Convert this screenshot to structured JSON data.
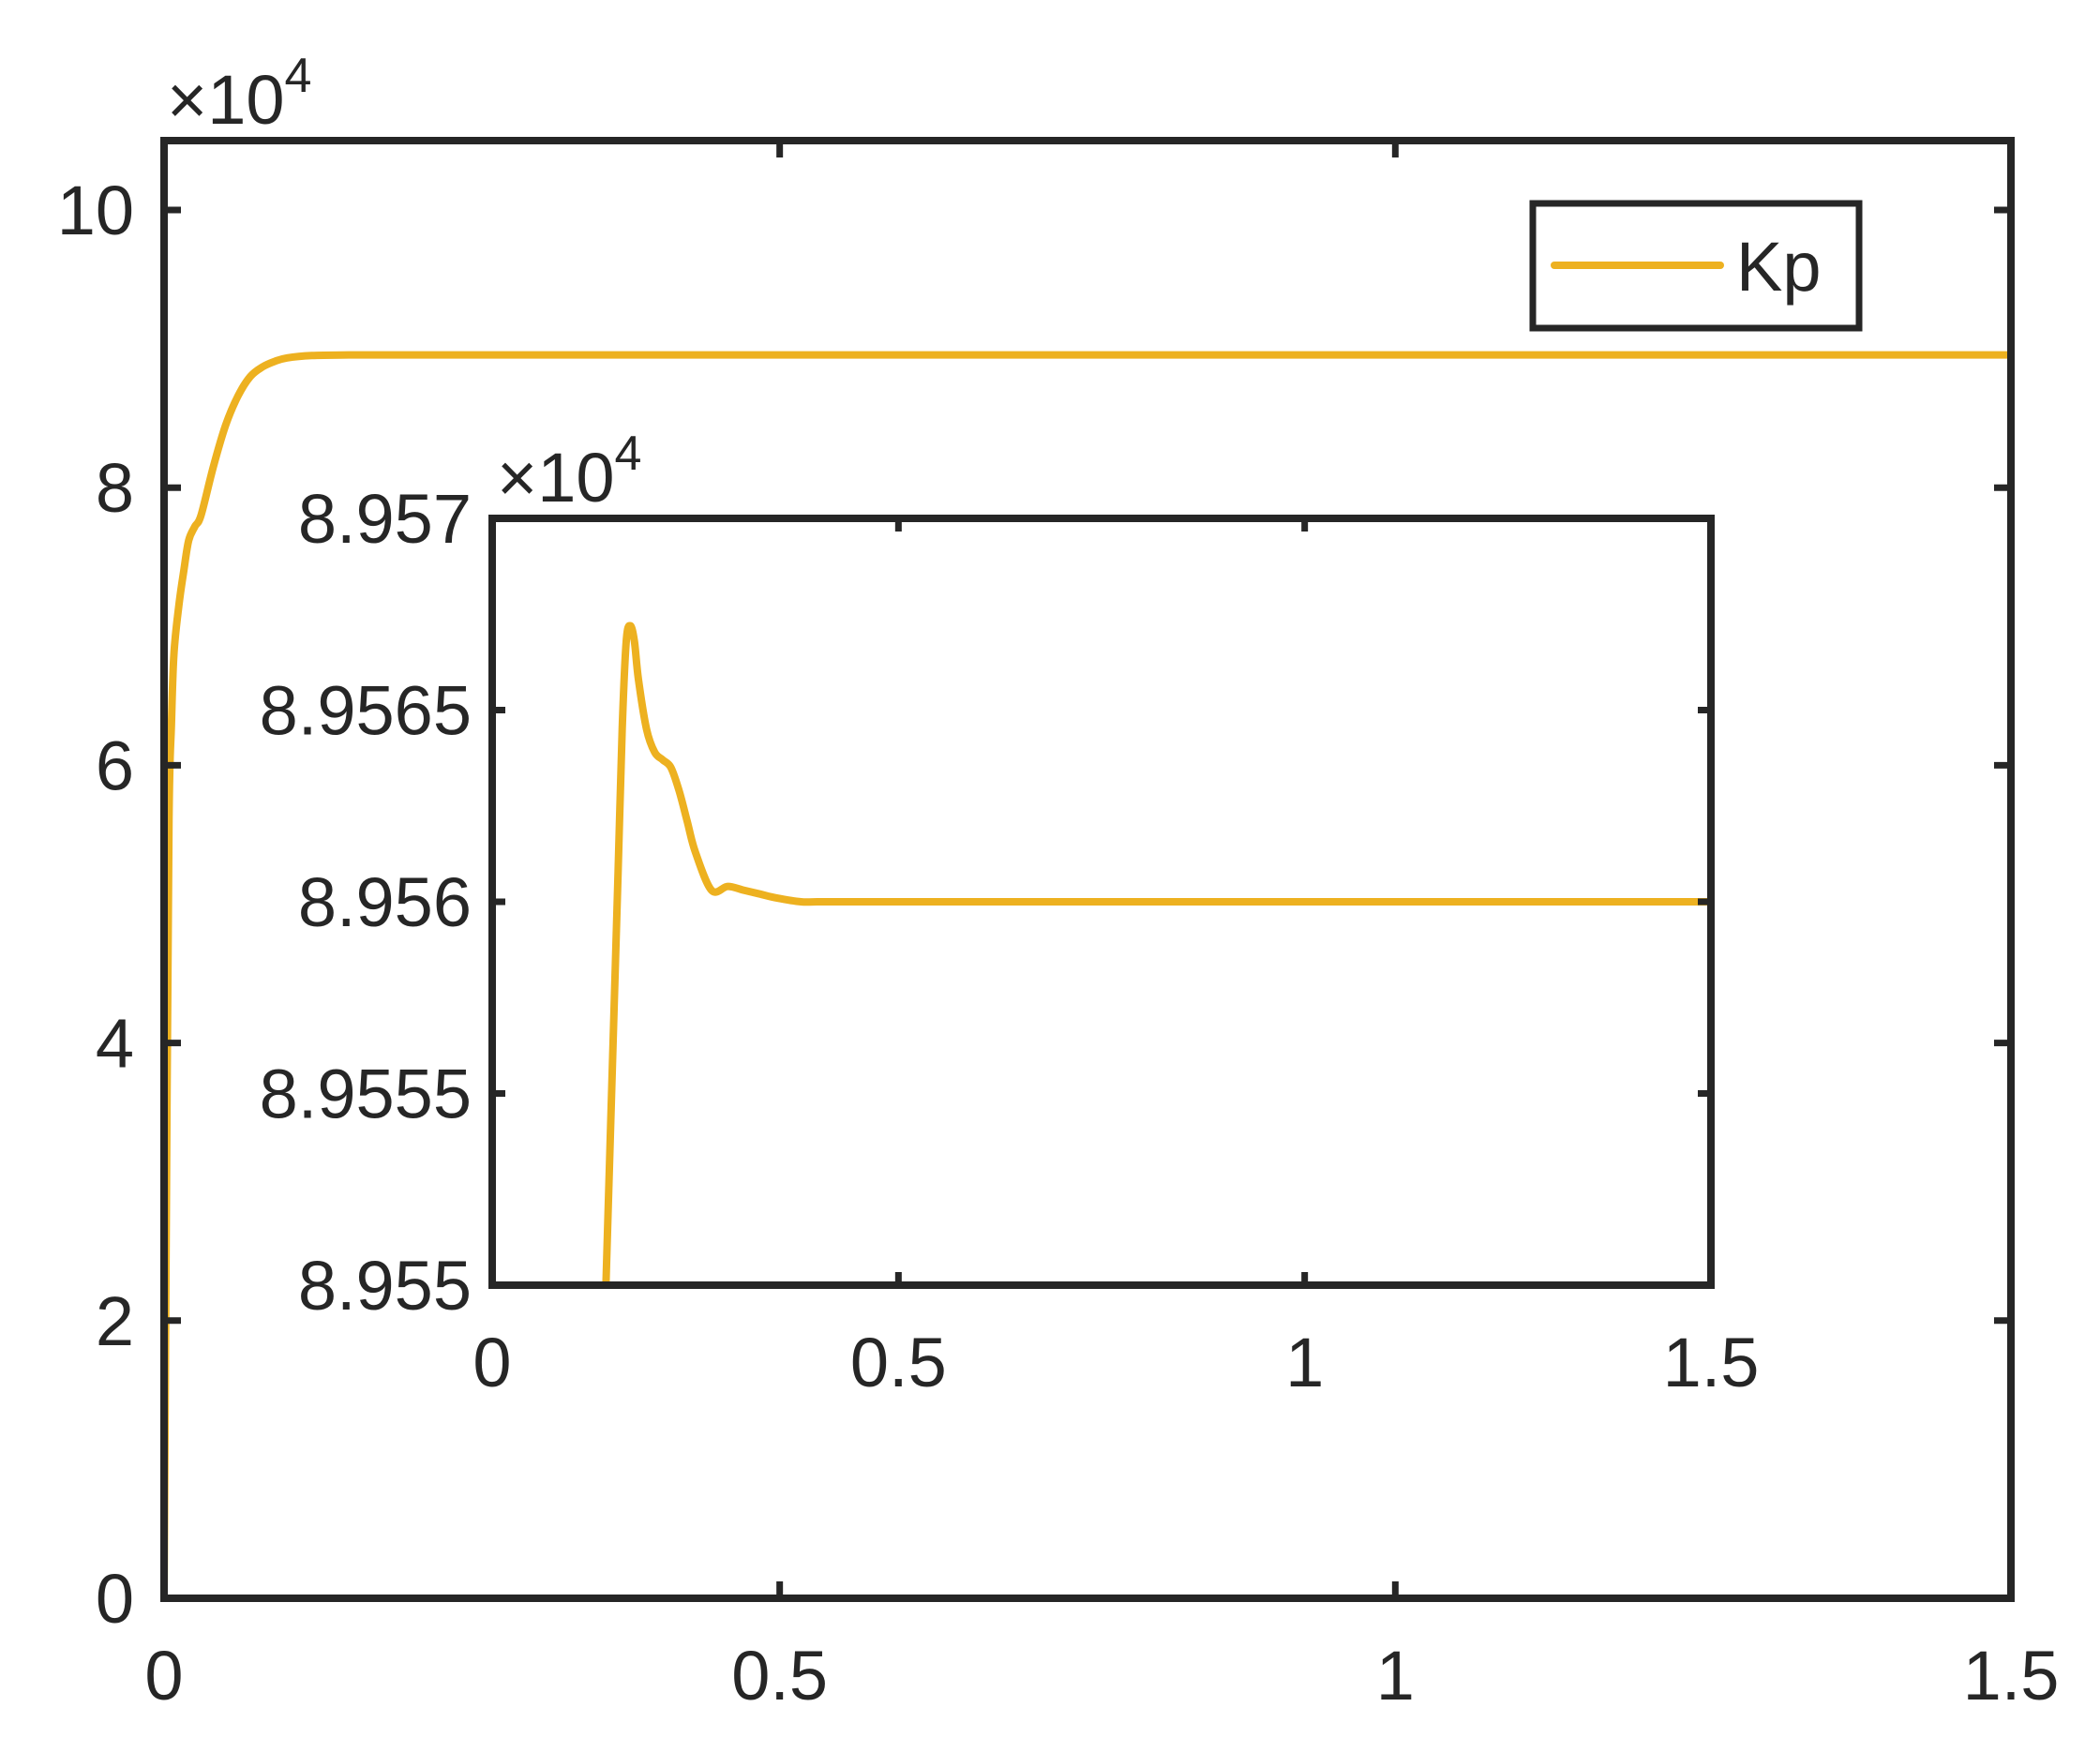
{
  "colors": {
    "series": "#EDB120",
    "axes": "#262626",
    "background": "#ffffff"
  },
  "chart_data": [
    {
      "type": "line",
      "role": "main",
      "xlim": [
        0,
        1.5
      ],
      "ylim": [
        0,
        10.5
      ],
      "y_multiplier": {
        "base": "×10",
        "exponent": "4"
      },
      "x_ticks": [
        {
          "value": 0,
          "label": "0"
        },
        {
          "value": 0.5,
          "label": "0.5"
        },
        {
          "value": 1,
          "label": "1"
        },
        {
          "value": 1.5,
          "label": "1.5"
        }
      ],
      "y_ticks": [
        {
          "value": 0,
          "label": "0"
        },
        {
          "value": 2,
          "label": "2"
        },
        {
          "value": 4,
          "label": "4"
        },
        {
          "value": 6,
          "label": "6"
        },
        {
          "value": 8,
          "label": "8"
        },
        {
          "value": 10,
          "label": "10"
        }
      ],
      "grid": false,
      "legend": {
        "position": "top-right",
        "entries": [
          "Kp"
        ]
      },
      "series": [
        {
          "name": "Kp",
          "x": [
            0,
            0.002,
            0.004,
            0.006,
            0.008,
            0.012,
            0.016,
            0.02,
            0.025,
            0.03,
            0.04,
            0.05,
            0.06,
            0.07,
            0.08,
            0.09,
            0.1,
            0.12,
            0.15,
            0.2,
            0.3,
            0.5,
            0.8,
            1.0,
            1.2,
            1.5
          ],
          "y": [
            0,
            3.0,
            5.6,
            6.3,
            6.8,
            7.15,
            7.4,
            7.62,
            7.72,
            7.8,
            8.15,
            8.45,
            8.66,
            8.8,
            8.87,
            8.91,
            8.935,
            8.952,
            8.956,
            8.956,
            8.956,
            8.956,
            8.956,
            8.956,
            8.956,
            8.956
          ]
        }
      ]
    },
    {
      "type": "line",
      "role": "inset",
      "xlim": [
        0,
        1.5
      ],
      "ylim": [
        8.955,
        8.957
      ],
      "y_multiplier": {
        "base": "×10",
        "exponent": "4"
      },
      "x_ticks": [
        {
          "value": 0,
          "label": "0"
        },
        {
          "value": 0.5,
          "label": "0.5"
        },
        {
          "value": 1,
          "label": "1"
        },
        {
          "value": 1.5,
          "label": "1.5"
        }
      ],
      "y_ticks": [
        {
          "value": 8.955,
          "label": "8.955"
        },
        {
          "value": 8.9555,
          "label": "8.9555"
        },
        {
          "value": 8.956,
          "label": "8.956"
        },
        {
          "value": 8.9565,
          "label": "8.9565"
        },
        {
          "value": 8.957,
          "label": "8.957"
        }
      ],
      "grid": false,
      "series": [
        {
          "name": "Kp",
          "x": [
            0.14,
            0.145,
            0.15,
            0.155,
            0.16,
            0.165,
            0.17,
            0.175,
            0.18,
            0.19,
            0.2,
            0.21,
            0.22,
            0.23,
            0.24,
            0.25,
            0.27,
            0.29,
            0.31,
            0.33,
            0.35,
            0.38,
            0.4,
            0.45,
            0.5,
            0.7,
            1.0,
            1.2,
            1.5
          ],
          "y": [
            8.955,
            8.95536,
            8.95572,
            8.95608,
            8.95645,
            8.95668,
            8.95672,
            8.95668,
            8.95658,
            8.95645,
            8.95639,
            8.95637,
            8.95635,
            8.95629,
            8.95621,
            8.95613,
            8.95603,
            8.95604,
            8.95603,
            8.95602,
            8.95601,
            8.956,
            8.956,
            8.956,
            8.956,
            8.956,
            8.956,
            8.956,
            8.956
          ]
        }
      ]
    }
  ]
}
